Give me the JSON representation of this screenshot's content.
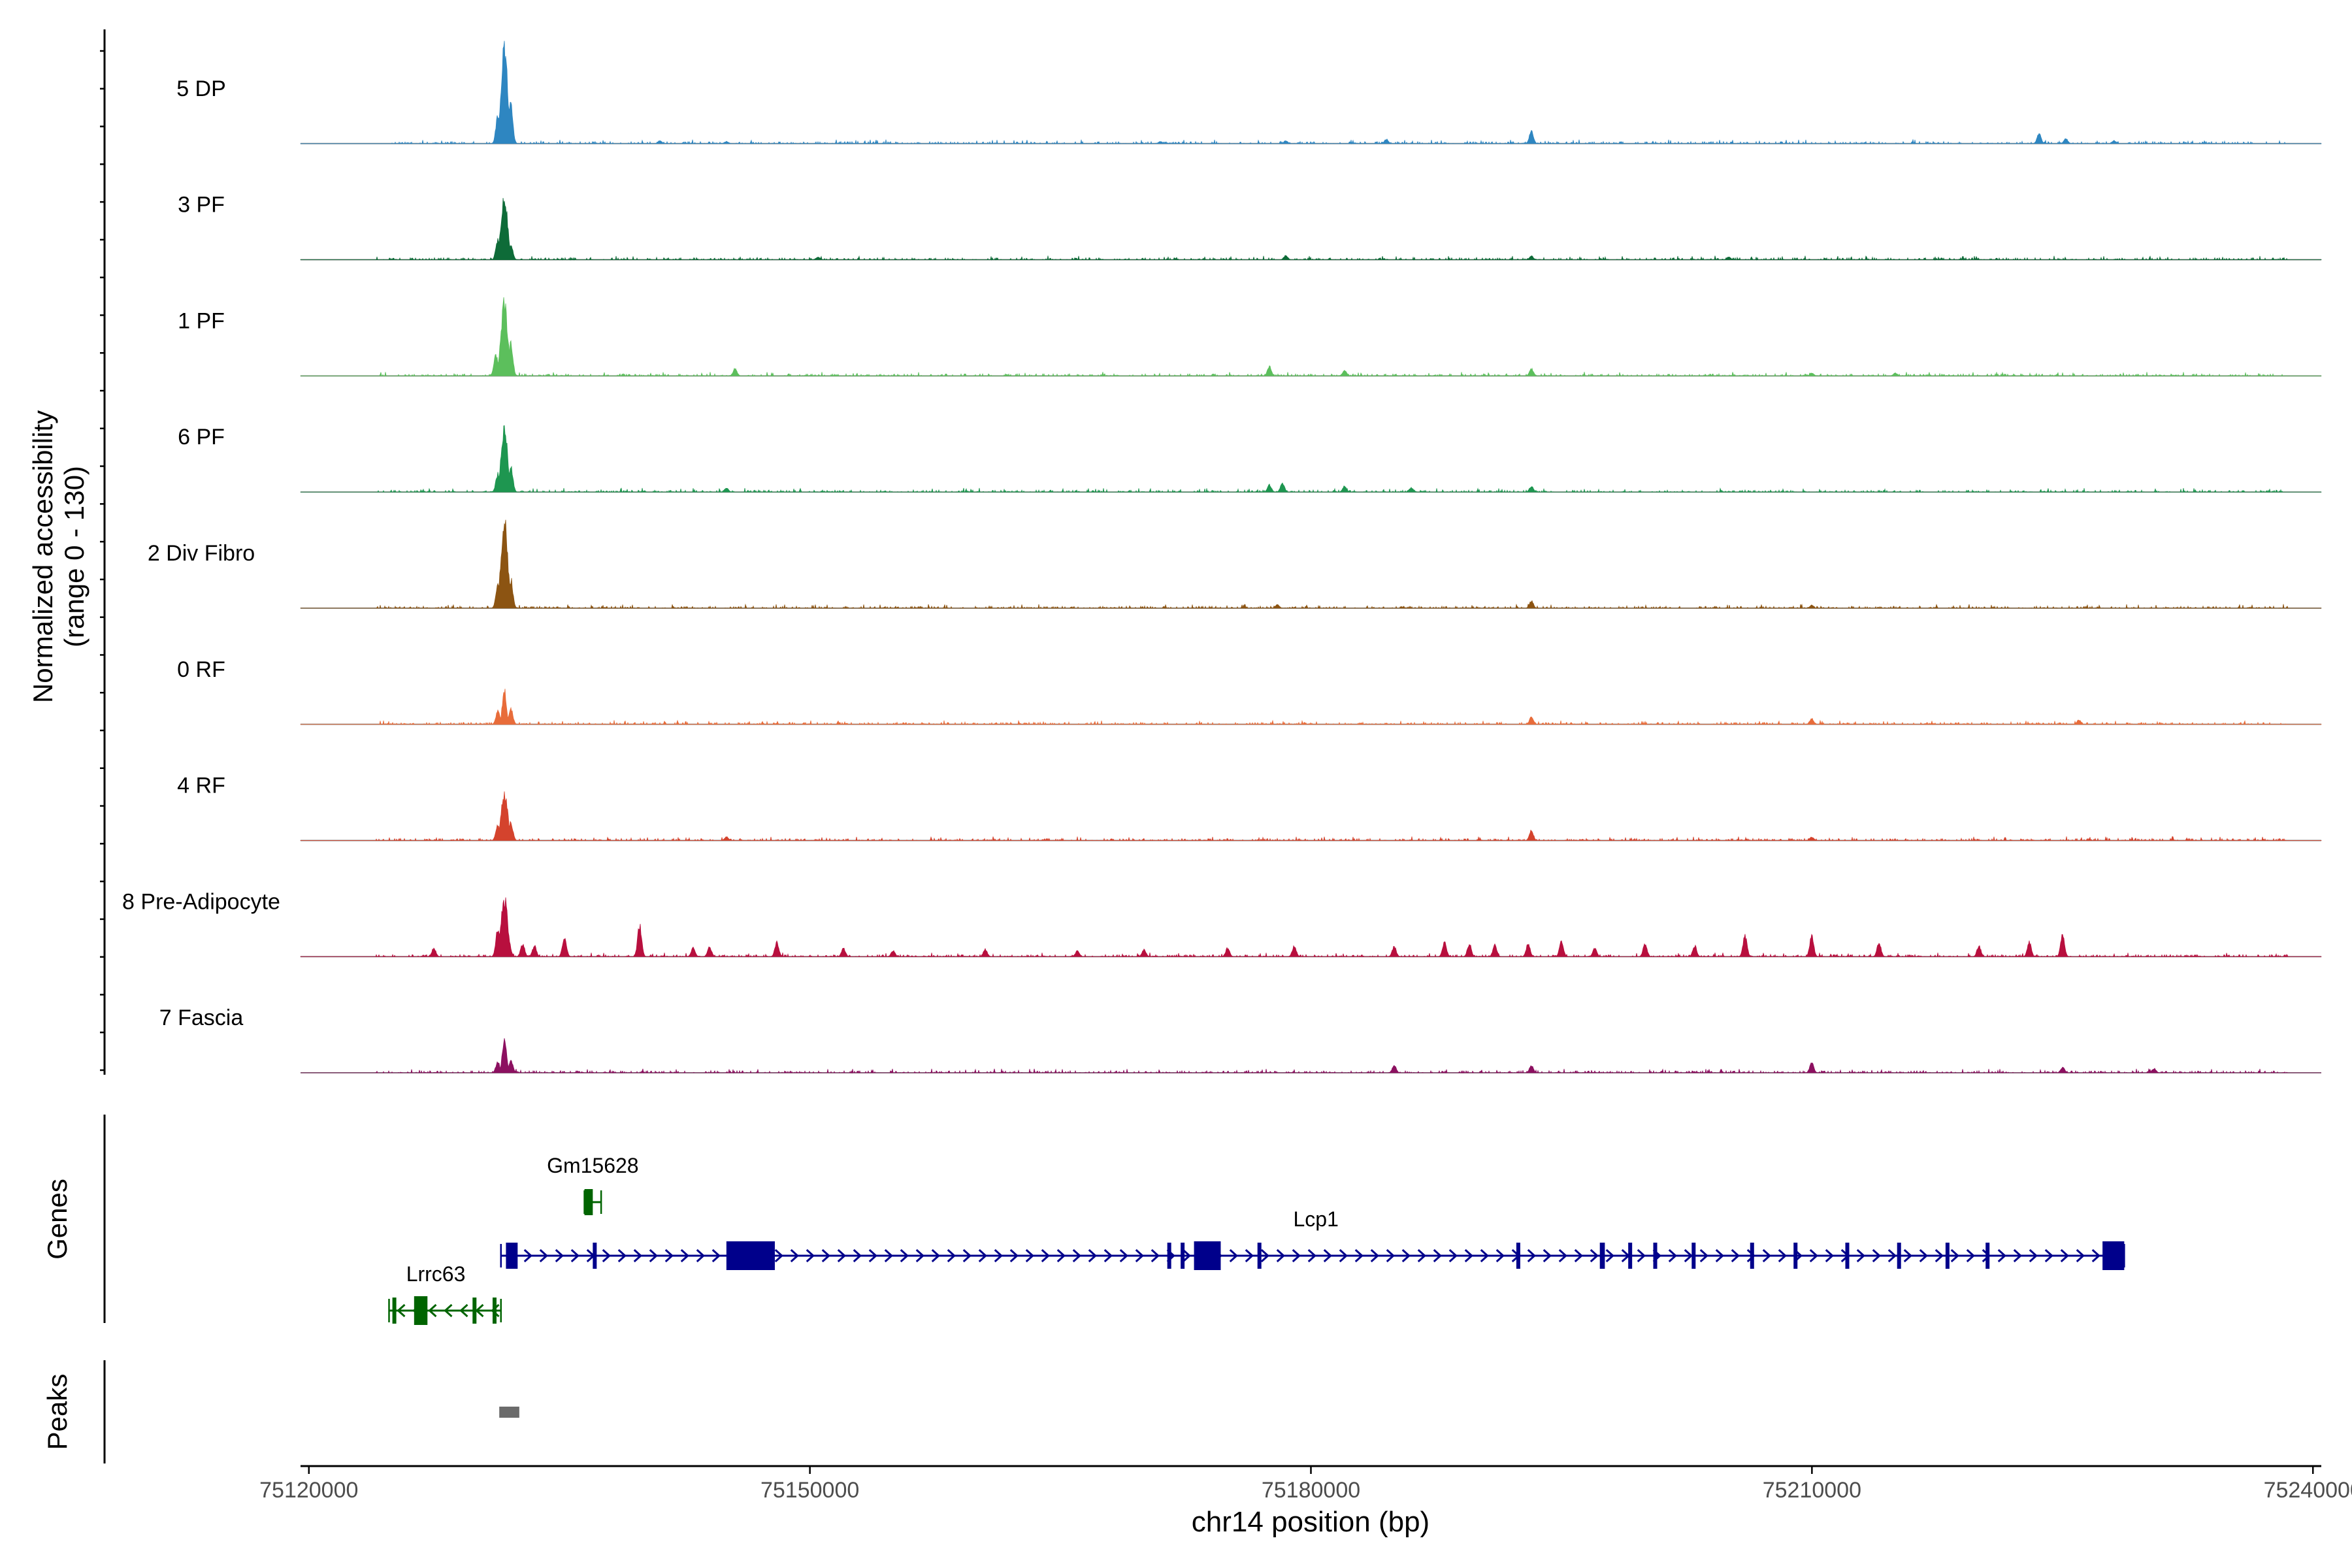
{
  "chart_data": {
    "type": "area",
    "title": "",
    "region": {
      "chrom": "chr14",
      "start": 75119500,
      "end": 75240500
    },
    "coverage_panel": {
      "ylabel": "Normalized accessibility",
      "ylabel_range": "(range 0 - 130)",
      "ylim": [
        0,
        130
      ],
      "tracks": [
        {
          "name": "5 DP",
          "color": "#2e86c1",
          "peaks": [
            [
              75131700,
              130
            ],
            [
              75131300,
              40
            ],
            [
              75132100,
              55
            ],
            [
              75141000,
              4
            ],
            [
              75145000,
              3
            ],
            [
              75171000,
              3
            ],
            [
              75178500,
              4
            ],
            [
              75184500,
              6
            ],
            [
              75193200,
              18
            ],
            [
              75223600,
              14
            ],
            [
              75225200,
              7
            ],
            [
              75228100,
              4
            ]
          ]
        },
        {
          "name": "3 PF",
          "color": "#0e6b38",
          "peaks": [
            [
              75131700,
              85
            ],
            [
              75131300,
              28
            ],
            [
              75132100,
              20
            ],
            [
              75150500,
              4
            ],
            [
              75178500,
              6
            ],
            [
              75193200,
              5
            ],
            [
              75205000,
              4
            ]
          ]
        },
        {
          "name": "1 PF",
          "color": "#5cbf5c",
          "peaks": [
            [
              75131700,
              100
            ],
            [
              75131200,
              30
            ],
            [
              75132100,
              45
            ],
            [
              75145500,
              10
            ],
            [
              75177500,
              13
            ],
            [
              75182000,
              8
            ],
            [
              75193200,
              10
            ],
            [
              75210000,
              4
            ],
            [
              75215000,
              4
            ]
          ]
        },
        {
          "name": "6 PF",
          "color": "#1e9650",
          "peaks": [
            [
              75131700,
              85
            ],
            [
              75131300,
              25
            ],
            [
              75132100,
              35
            ],
            [
              75145000,
              6
            ],
            [
              75177500,
              10
            ],
            [
              75178300,
              13
            ],
            [
              75182000,
              8
            ],
            [
              75186000,
              6
            ],
            [
              75193200,
              8
            ]
          ]
        },
        {
          "name": "2 Div Fibro",
          "color": "#8c5412",
          "peaks": [
            [
              75131700,
              120
            ],
            [
              75131300,
              35
            ],
            [
              75132100,
              40
            ],
            [
              75193200,
              10
            ],
            [
              75178000,
              5
            ],
            [
              75210000,
              4
            ]
          ]
        },
        {
          "name": "0 RF",
          "color": "#e86c3a",
          "peaks": [
            [
              75131700,
              50
            ],
            [
              75131300,
              18
            ],
            [
              75132100,
              22
            ],
            [
              75193200,
              10
            ],
            [
              75210000,
              8
            ],
            [
              75226000,
              6
            ]
          ]
        },
        {
          "name": "4 RF",
          "color": "#d4432d",
          "peaks": [
            [
              75131700,
              65
            ],
            [
              75131300,
              22
            ],
            [
              75132100,
              25
            ],
            [
              75193200,
              14
            ],
            [
              75145000,
              5
            ],
            [
              75210000,
              5
            ]
          ]
        },
        {
          "name": "8 Pre-Adipocyte",
          "color": "#b80f3e",
          "peaks": [
            [
              75131700,
              80
            ],
            [
              75131300,
              40
            ],
            [
              75127500,
              12
            ],
            [
              75132800,
              18
            ],
            [
              75133500,
              15
            ],
            [
              75135300,
              28
            ],
            [
              75139800,
              45
            ],
            [
              75143000,
              12
            ],
            [
              75144000,
              14
            ],
            [
              75148000,
              20
            ],
            [
              75152000,
              12
            ],
            [
              75155000,
              8
            ],
            [
              75160500,
              10
            ],
            [
              75166000,
              8
            ],
            [
              75170000,
              10
            ],
            [
              75175000,
              12
            ],
            [
              75179000,
              15
            ],
            [
              75185000,
              14
            ],
            [
              75188000,
              20
            ],
            [
              75189500,
              18
            ],
            [
              75191000,
              16
            ],
            [
              75193000,
              18
            ],
            [
              75195000,
              22
            ],
            [
              75197000,
              12
            ],
            [
              75200000,
              18
            ],
            [
              75203000,
              15
            ],
            [
              75206000,
              30
            ],
            [
              75210000,
              28
            ],
            [
              75214000,
              20
            ],
            [
              75220000,
              15
            ],
            [
              75223000,
              20
            ],
            [
              75225000,
              30
            ]
          ]
        },
        {
          "name": "7 Fascia",
          "color": "#8c1060",
          "peaks": [
            [
              75131700,
              50
            ],
            [
              75131300,
              15
            ],
            [
              75132100,
              18
            ],
            [
              75185000,
              10
            ],
            [
              75193200,
              10
            ],
            [
              75210000,
              14
            ],
            [
              75225000,
              8
            ],
            [
              75230500,
              6
            ]
          ]
        }
      ]
    },
    "genes_panel": {
      "ylabel": "Genes",
      "genes": [
        {
          "name": "Lrrc63",
          "strand": "-",
          "color": "#006400",
          "start": 75124800,
          "end": 75131500,
          "row": 2,
          "exons": [
            [
              75125000,
              75125100
            ],
            [
              75126300,
              75127100
            ],
            [
              75129800,
              75129900
            ],
            [
              75131000,
              75131100
            ]
          ]
        },
        {
          "name": "Gm15628",
          "strand": "-",
          "color": "#006400",
          "start": 75136500,
          "end": 75137500,
          "row": 0,
          "exons": [
            [
              75136500,
              75137000
            ]
          ]
        },
        {
          "name": "Lcp1",
          "strand": "+",
          "color": "#00008b",
          "start": 75131500,
          "end": 75228700,
          "row": 1,
          "exons": [
            [
              75131800,
              75132500
            ],
            [
              75137000,
              75137200
            ],
            [
              75145000,
              75147900
            ],
            [
              75171400,
              75171600
            ],
            [
              75172200,
              75172400
            ],
            [
              75173000,
              75174600
            ],
            [
              75176800,
              75177000
            ],
            [
              75192300,
              75192500
            ],
            [
              75197300,
              75197600
            ],
            [
              75199000,
              75199200
            ],
            [
              75200500,
              75200700
            ],
            [
              75202800,
              75203000
            ],
            [
              75206300,
              75206500
            ],
            [
              75208900,
              75209100
            ],
            [
              75212000,
              75212200
            ],
            [
              75215100,
              75215300
            ],
            [
              75218000,
              75218200
            ],
            [
              75220400,
              75220600
            ],
            [
              75227400,
              75228700
            ]
          ]
        }
      ]
    },
    "peaks_panel": {
      "ylabel": "Peaks",
      "regions": [
        [
          75131400,
          75132600
        ]
      ]
    },
    "x_axis": {
      "label": "chr14 position (bp)",
      "ticks": [
        75120000,
        75150000,
        75180000,
        75210000,
        75240000
      ],
      "tick_labels": [
        "75120000",
        "75150000",
        "75180000",
        "75210000",
        "75240000"
      ]
    },
    "colors": {
      "baseline": "#8a8a8a",
      "peak_region": "#6b6b6b",
      "axis": "#000000",
      "tick_label": "#4d4d4d"
    }
  }
}
